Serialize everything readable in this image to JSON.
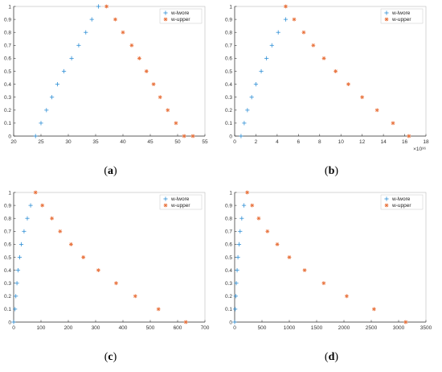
{
  "colors": {
    "lwore": "#2e8fd6",
    "upper": "#e8703a",
    "axis": "#333333",
    "frame": "#bbbbbb"
  },
  "chart_data": [
    {
      "id": "a",
      "caption_open": "(",
      "caption_letter": "a",
      "caption_close": ")",
      "type": "scatter",
      "xlim": [
        20,
        55
      ],
      "ylim": [
        0,
        1
      ],
      "xticks": [
        20,
        25,
        30,
        35,
        40,
        45,
        50,
        55
      ],
      "xtick_labels": [
        "20",
        "25",
        "30",
        "35",
        "40",
        "45",
        "50",
        "55"
      ],
      "yticks": [
        0,
        0.1,
        0.2,
        0.3,
        0.4,
        0.5,
        0.6,
        0.7,
        0.8,
        0.9,
        1
      ],
      "ytick_labels": [
        "0",
        "0.1",
        "0.2",
        "0.3",
        "0.4",
        "0.5",
        "0.6",
        "0.7",
        "0.8",
        "0.9",
        "1"
      ],
      "exponent_label": "",
      "legend": {
        "placement": "top-right",
        "entries": [
          "w-lwore",
          "w-upper"
        ]
      },
      "series": [
        {
          "name": "w-lwore",
          "marker": "plus",
          "x": [
            24,
            25,
            26,
            27,
            28,
            29.2,
            30.6,
            31.9,
            33.2,
            34.3,
            35.5
          ],
          "y": [
            0,
            0.1,
            0.2,
            0.3,
            0.4,
            0.5,
            0.6,
            0.7,
            0.8,
            0.9,
            1.0
          ]
        },
        {
          "name": "w-upper",
          "marker": "star",
          "x": [
            37,
            38.6,
            40,
            41.6,
            43,
            44.3,
            45.6,
            46.8,
            48.2,
            49.7,
            51.2,
            52.8
          ],
          "y": [
            1.0,
            0.9,
            0.8,
            0.7,
            0.6,
            0.5,
            0.4,
            0.3,
            0.2,
            0.1,
            0,
            0
          ]
        }
      ]
    },
    {
      "id": "b",
      "caption_open": "(",
      "caption_letter": "b",
      "caption_close": ")",
      "type": "scatter",
      "xlim": [
        0,
        18
      ],
      "ylim": [
        0,
        1
      ],
      "xticks": [
        0,
        2,
        4,
        6,
        8,
        10,
        12,
        14,
        16,
        18
      ],
      "xtick_labels": [
        "0",
        "2",
        "4",
        "6",
        "8",
        "10",
        "12",
        "14",
        "16",
        "18"
      ],
      "yticks": [
        0,
        0.1,
        0.2,
        0.3,
        0.4,
        0.5,
        0.6,
        0.7,
        0.8,
        0.9,
        1
      ],
      "ytick_labels": [
        "0",
        "0.1",
        "0.2",
        "0.3",
        "0.4",
        "0.5",
        "0.6",
        "0.7",
        "0.8",
        "0.9",
        "1"
      ],
      "exponent_label": "×10³⁶",
      "legend": {
        "placement": "top-right",
        "entries": [
          "w-lwore",
          "w-upper"
        ]
      },
      "series": [
        {
          "name": "w-lwore",
          "marker": "plus",
          "x": [
            0.6,
            0.9,
            1.2,
            1.6,
            2.0,
            2.5,
            3.0,
            3.5,
            4.1,
            4.8
          ],
          "y": [
            0,
            0.1,
            0.2,
            0.3,
            0.4,
            0.5,
            0.6,
            0.7,
            0.8,
            0.9
          ]
        },
        {
          "name": "w-upper",
          "marker": "star",
          "x": [
            4.8,
            5.6,
            6.5,
            7.4,
            8.4,
            9.5,
            10.7,
            12.0,
            13.4,
            14.9,
            16.4
          ],
          "y": [
            1.0,
            0.9,
            0.8,
            0.7,
            0.6,
            0.5,
            0.4,
            0.3,
            0.2,
            0.1,
            0
          ]
        }
      ]
    },
    {
      "id": "c",
      "caption_open": "(",
      "caption_letter": "c",
      "caption_close": ")",
      "type": "scatter",
      "xlim": [
        0,
        700
      ],
      "ylim": [
        0,
        1
      ],
      "xticks": [
        0,
        100,
        200,
        300,
        400,
        500,
        600,
        700
      ],
      "xtick_labels": [
        "0",
        "100",
        "200",
        "300",
        "400",
        "500",
        "600",
        "700"
      ],
      "yticks": [
        0,
        0.1,
        0.2,
        0.3,
        0.4,
        0.5,
        0.6,
        0.7,
        0.8,
        0.9,
        1
      ],
      "ytick_labels": [
        "0",
        "0.1",
        "0.2",
        "0.3",
        "0.4",
        "0.5",
        "0.6",
        "0.7",
        "0.8",
        "0.9",
        "1"
      ],
      "exponent_label": "",
      "legend": {
        "placement": "top-right",
        "entries": [
          "w-lwore",
          "w-upper"
        ]
      },
      "series": [
        {
          "name": "w-lwore",
          "marker": "plus",
          "x": [
            0,
            5,
            8,
            12,
            16,
            22,
            28,
            38,
            50,
            62
          ],
          "y": [
            0,
            0.1,
            0.2,
            0.3,
            0.4,
            0.5,
            0.6,
            0.7,
            0.8,
            0.9
          ]
        },
        {
          "name": "w-upper",
          "marker": "star",
          "x": [
            80,
            105,
            140,
            170,
            210,
            255,
            310,
            375,
            445,
            530,
            630
          ],
          "y": [
            1.0,
            0.9,
            0.8,
            0.7,
            0.6,
            0.5,
            0.4,
            0.3,
            0.2,
            0.1,
            0
          ]
        }
      ]
    },
    {
      "id": "d",
      "caption_open": "(",
      "caption_letter": "d",
      "caption_close": ")",
      "type": "scatter",
      "xlim": [
        0,
        3500
      ],
      "ylim": [
        0,
        1
      ],
      "xticks": [
        0,
        500,
        1000,
        1500,
        2000,
        2500,
        3000,
        3500
      ],
      "xtick_labels": [
        "0",
        "500",
        "1000",
        "1500",
        "2000",
        "2500",
        "3000",
        "3500"
      ],
      "yticks": [
        0,
        0.1,
        0.2,
        0.3,
        0.4,
        0.5,
        0.6,
        0.7,
        0.8,
        0.9,
        1
      ],
      "ytick_labels": [
        "0",
        "0.1",
        "0.2",
        "0.3",
        "0.4",
        "0.5",
        "0.6",
        "0.7",
        "0.8",
        "0.9",
        "1"
      ],
      "exponent_label": "",
      "legend": {
        "placement": "top-right",
        "entries": [
          "w-lwore",
          "w-upper"
        ]
      },
      "series": [
        {
          "name": "w-lwore",
          "marker": "plus",
          "x": [
            0,
            10,
            20,
            30,
            45,
            60,
            80,
            100,
            130,
            170
          ],
          "y": [
            0,
            0.1,
            0.2,
            0.3,
            0.4,
            0.5,
            0.6,
            0.7,
            0.8,
            0.9
          ]
        },
        {
          "name": "w-upper",
          "marker": "star",
          "x": [
            230,
            320,
            440,
            600,
            780,
            1000,
            1280,
            1630,
            2050,
            2550,
            3130
          ],
          "y": [
            1.0,
            0.9,
            0.8,
            0.7,
            0.6,
            0.5,
            0.4,
            0.3,
            0.2,
            0.1,
            0
          ]
        }
      ]
    }
  ]
}
